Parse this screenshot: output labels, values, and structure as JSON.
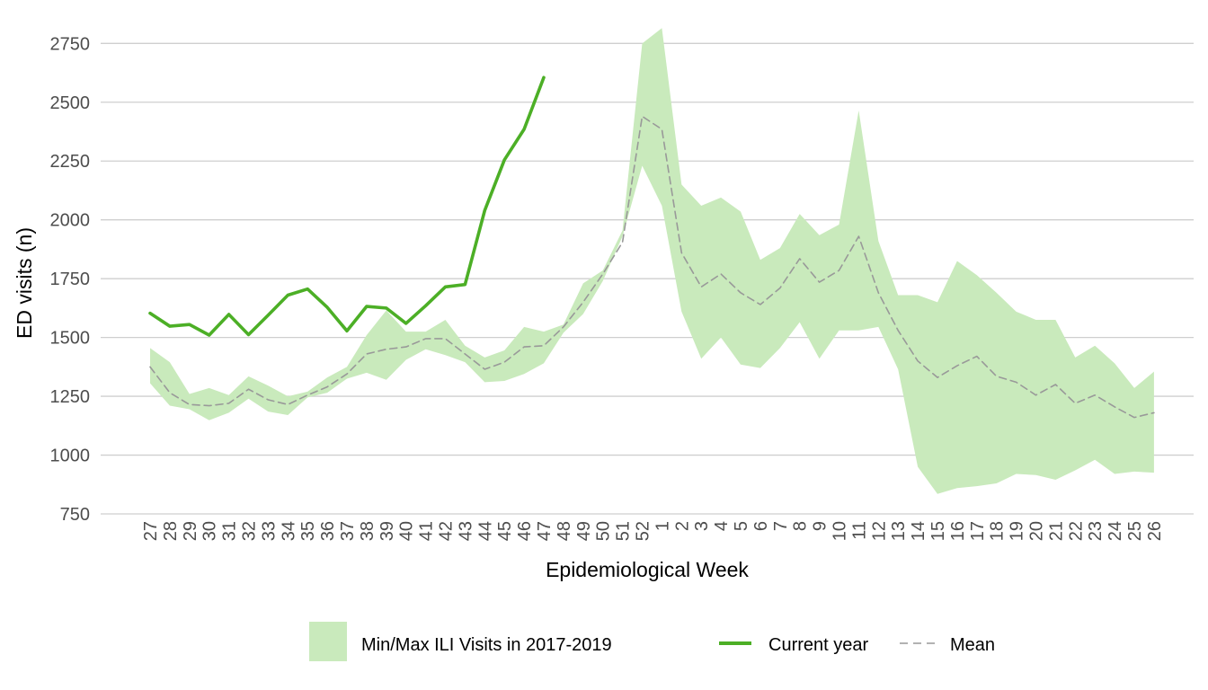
{
  "chart_data": {
    "type": "line",
    "xlabel": "Epidemiological Week",
    "ylabel": "ED visits (n)",
    "categories": [
      "27",
      "28",
      "29",
      "30",
      "31",
      "32",
      "33",
      "34",
      "35",
      "36",
      "37",
      "38",
      "39",
      "40",
      "41",
      "42",
      "43",
      "44",
      "45",
      "46",
      "47",
      "48",
      "49",
      "50",
      "51",
      "52",
      "1",
      "2",
      "3",
      "4",
      "5",
      "6",
      "7",
      "8",
      "9",
      "10",
      "11",
      "12",
      "13",
      "14",
      "15",
      "16",
      "17",
      "18",
      "19",
      "20",
      "21",
      "22",
      "23",
      "24",
      "25",
      "26"
    ],
    "ylim": [
      750,
      2820
    ],
    "yticks": [
      750,
      1000,
      1250,
      1500,
      1750,
      2000,
      2250,
      2500,
      2750
    ],
    "grid": true,
    "legend_position": "bottom",
    "band": {
      "name": "Min/Max ILI Visits in 2017-2019",
      "color": "#c9eabc",
      "min": [
        1305,
        1210,
        1195,
        1148,
        1180,
        1240,
        1185,
        1170,
        1245,
        1265,
        1325,
        1350,
        1320,
        1405,
        1450,
        1425,
        1395,
        1310,
        1315,
        1345,
        1390,
        1520,
        1600,
        1740,
        1930,
        2230,
        2060,
        1610,
        1410,
        1500,
        1385,
        1370,
        1455,
        1565,
        1410,
        1530,
        1530,
        1545,
        1365,
        950,
        835,
        860,
        868,
        880,
        920,
        915,
        895,
        935,
        980,
        920,
        930,
        925
      ],
      "max": [
        1455,
        1395,
        1260,
        1285,
        1255,
        1335,
        1295,
        1250,
        1270,
        1330,
        1375,
        1510,
        1615,
        1525,
        1525,
        1575,
        1465,
        1415,
        1445,
        1545,
        1525,
        1555,
        1730,
        1785,
        1955,
        2750,
        2815,
        2150,
        2060,
        2095,
        2035,
        1830,
        1880,
        2025,
        1935,
        1980,
        2465,
        1910,
        1680,
        1680,
        1650,
        1825,
        1765,
        1690,
        1610,
        1575,
        1575,
        1415,
        1465,
        1390,
        1285,
        1355
      ]
    },
    "series": [
      {
        "name": "Current year",
        "color": "#4caf26",
        "values": [
          1603,
          1548,
          1555,
          1510,
          1598,
          1512,
          1595,
          1680,
          1706,
          1628,
          1528,
          1632,
          1625,
          1560,
          1635,
          1715,
          1725,
          2040,
          2255,
          2385,
          2605,
          null,
          null,
          null,
          null,
          null,
          null,
          null,
          null,
          null,
          null,
          null,
          null,
          null,
          null,
          null,
          null,
          null,
          null,
          null,
          null,
          null,
          null,
          null,
          null,
          null,
          null,
          null,
          null,
          null,
          null,
          null
        ]
      },
      {
        "name": "Mean",
        "color": "#999999",
        "values": [
          1375,
          1265,
          1215,
          1210,
          1220,
          1280,
          1235,
          1215,
          1255,
          1290,
          1345,
          1430,
          1450,
          1460,
          1495,
          1495,
          1430,
          1365,
          1395,
          1460,
          1465,
          1545,
          1650,
          1770,
          1905,
          2440,
          2385,
          1860,
          1715,
          1770,
          1690,
          1640,
          1710,
          1835,
          1735,
          1785,
          1930,
          1690,
          1530,
          1400,
          1330,
          1380,
          1420,
          1335,
          1310,
          1255,
          1300,
          1220,
          1255,
          1205,
          1160,
          1180
        ]
      }
    ]
  }
}
